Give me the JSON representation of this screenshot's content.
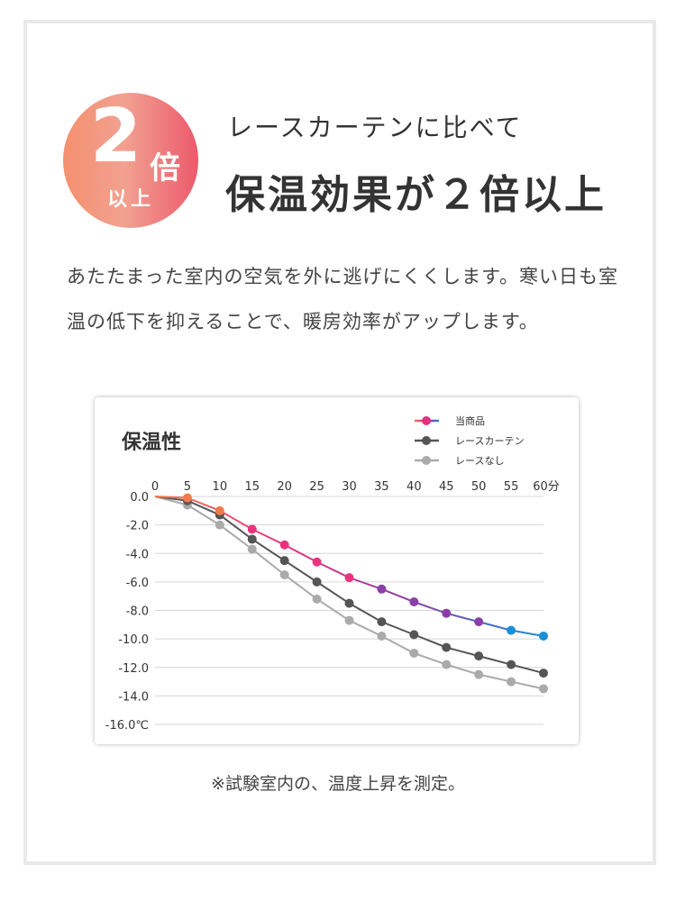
{
  "badge": {
    "number": "2",
    "unit": "倍",
    "suffix": "以上"
  },
  "subtitle": "レースカーテンに比べて",
  "headline": "保温効果が２倍以上",
  "description": "あたたまった室内の空気を外に逃げにくくします。寒い日も室温の低下を抑えることで、暖房効率がアップします。",
  "footnote": "※試験室内の、温度上昇を測定。",
  "chart_data": {
    "type": "line",
    "title": "保温性",
    "x": [
      0,
      5,
      10,
      15,
      20,
      25,
      30,
      35,
      40,
      45,
      50,
      55,
      60
    ],
    "xtick_labels": [
      "0",
      "5",
      "10",
      "15",
      "20",
      "25",
      "30",
      "35",
      "40",
      "45",
      "50",
      "55",
      "60分"
    ],
    "ytick_labels": [
      "0.0",
      "-2.0",
      "-4.0",
      "-6.0",
      "-8.0",
      "-10.0",
      "-12.0",
      "-14.0",
      "-16.0℃"
    ],
    "yticks": [
      0,
      -2,
      -4,
      -6,
      -8,
      -10,
      -12,
      -14,
      -16
    ],
    "xlim": [
      0,
      60
    ],
    "ylim": [
      -16,
      0
    ],
    "grid": "horizontal",
    "legend": "top-right",
    "series": [
      {
        "name": "当商品",
        "color": "#e8347f",
        "gradient": [
          "#f47a4a",
          "#e8347f",
          "#8a3fa8",
          "#1c8ed6"
        ],
        "values": [
          0,
          -0.1,
          -1.0,
          -2.3,
          -3.4,
          -4.6,
          -5.7,
          -6.5,
          -7.4,
          -8.2,
          -8.8,
          -9.4,
          -9.8
        ]
      },
      {
        "name": "レースカーテン",
        "color": "#555555",
        "values": [
          0,
          -0.3,
          -1.3,
          -3.0,
          -4.5,
          -6.0,
          -7.5,
          -8.8,
          -9.7,
          -10.6,
          -11.2,
          -11.8,
          -12.4
        ]
      },
      {
        "name": "レースなし",
        "color": "#aaaaaa",
        "values": [
          0,
          -0.6,
          -2.0,
          -3.7,
          -5.5,
          -7.2,
          -8.7,
          -9.8,
          -11.0,
          -11.8,
          -12.5,
          -13.0,
          -13.5
        ]
      }
    ]
  }
}
